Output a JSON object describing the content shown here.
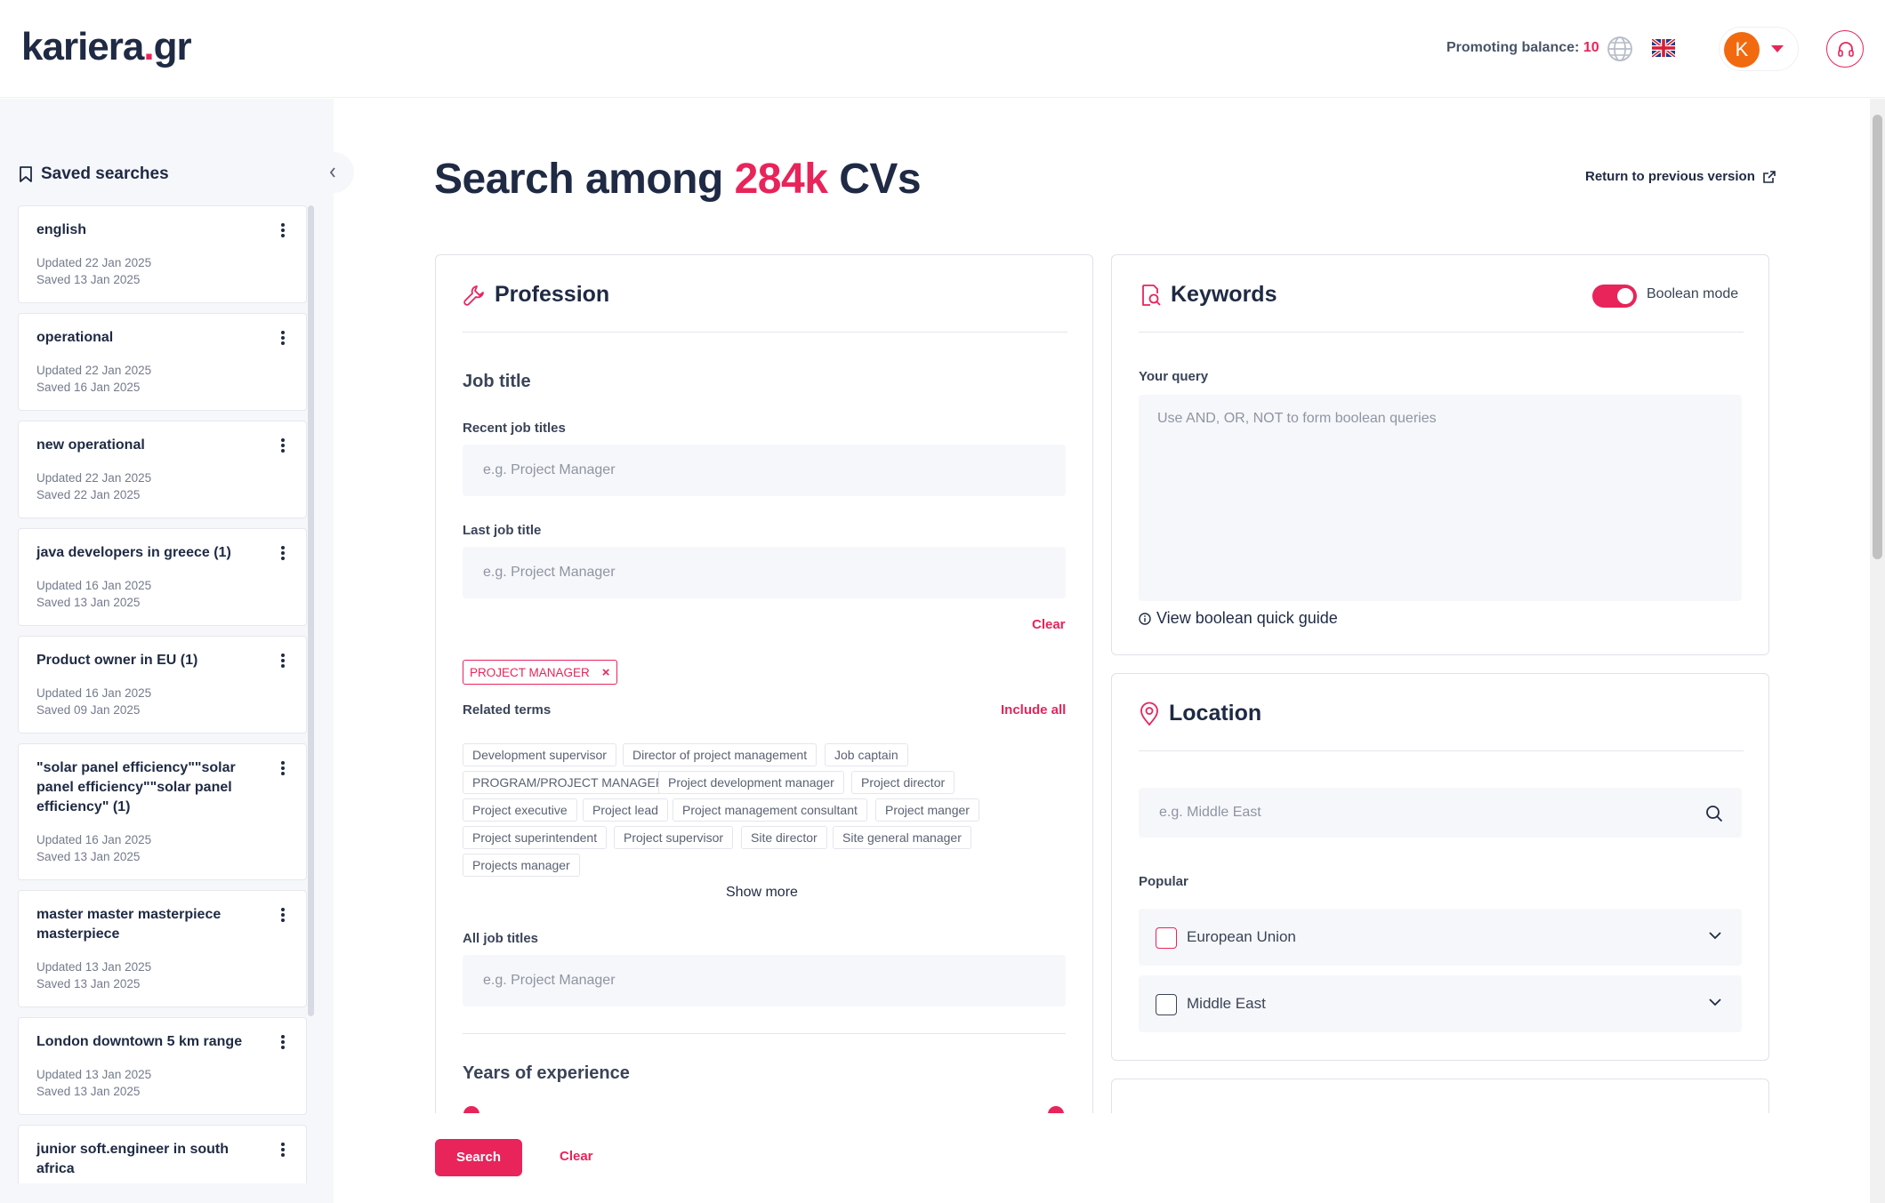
{
  "header": {
    "logo_main": "kariera",
    "logo_dot": ".",
    "logo_tld": "gr",
    "promo_label": "Promoting balance:",
    "promo_value": "10",
    "avatar_initial": "K"
  },
  "sidebar": {
    "title": "Saved searches",
    "items": [
      {
        "name": "english",
        "updated": "Updated 22 Jan 2025",
        "saved": "Saved 13 Jan 2025"
      },
      {
        "name": "operational",
        "updated": "Updated 22 Jan 2025",
        "saved": "Saved 16 Jan 2025"
      },
      {
        "name": "new operational",
        "updated": "Updated 22 Jan 2025",
        "saved": "Saved 22 Jan 2025"
      },
      {
        "name": "java developers in greece (1)",
        "updated": "Updated 16 Jan 2025",
        "saved": "Saved 13 Jan 2025"
      },
      {
        "name": "Product owner in EU (1)",
        "updated": "Updated 16 Jan 2025",
        "saved": "Saved 09 Jan 2025"
      },
      {
        "name": "\"solar panel efficiency\"\"solar panel efficiency\"\"solar panel efficiency\" (1)",
        "updated": "Updated 16 Jan 2025",
        "saved": "Saved 13 Jan 2025"
      },
      {
        "name": "master master masterpiece masterpiece",
        "updated": "Updated 13 Jan 2025",
        "saved": "Saved 13 Jan 2025"
      },
      {
        "name": "London downtown 5 km range",
        "updated": "Updated 13 Jan 2025",
        "saved": "Saved 13 Jan 2025"
      },
      {
        "name": "junior soft.engineer in south africa",
        "updated": "",
        "saved": ""
      }
    ]
  },
  "main": {
    "title_prefix": "Search among ",
    "title_count": "284k",
    "title_suffix": " CVs",
    "return_link": "Return to previous version"
  },
  "profession": {
    "heading": "Profession",
    "job_title_heading": "Job title",
    "recent_label": "Recent job titles",
    "recent_placeholder": "e.g. Project Manager",
    "last_label": "Last job title",
    "last_placeholder": "e.g. Project Manager",
    "clear_label": "Clear",
    "selected_tag": "PROJECT MANAGER",
    "related_label": "Related terms",
    "include_all": "Include all",
    "related_terms": [
      "Development supervisor",
      "Director of project management",
      "Job captain",
      "PROGRAM/PROJECT MANAGER",
      "Project development manager",
      "Project director",
      "Project executive",
      "Project lead",
      "Project management consultant",
      "Project manger",
      "Project superintendent",
      "Project supervisor",
      "Site director",
      "Site general manager",
      "Projects manager"
    ],
    "show_more": "Show more",
    "all_label": "All job titles",
    "all_placeholder": "e.g. Project Manager",
    "years_heading": "Years of experience"
  },
  "keywords": {
    "heading": "Keywords",
    "boolean_label": "Boolean mode",
    "boolean_on": true,
    "query_label": "Your query",
    "query_placeholder": "Use AND, OR, NOT to form boolean queries",
    "guide_link": "View boolean quick guide"
  },
  "location": {
    "heading": "Location",
    "search_placeholder": "e.g. Middle East",
    "popular_label": "Popular",
    "options": [
      "European Union",
      "Middle East"
    ]
  },
  "footer": {
    "search_button": "Search",
    "clear_button": "Clear"
  },
  "colors": {
    "accent": "#e8245a",
    "navy": "#1f2a44",
    "avatar": "#f26a10"
  }
}
